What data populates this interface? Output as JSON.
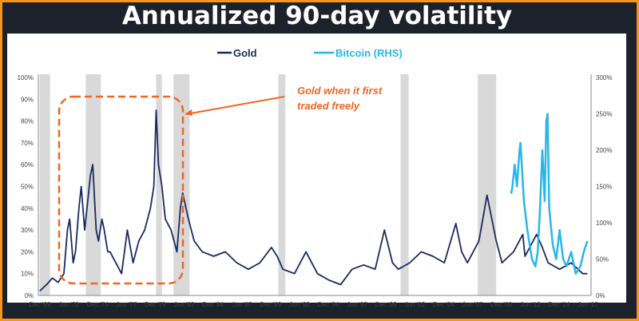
{
  "title": "Annualized 90-day volatility",
  "chart_data": {
    "type": "line",
    "legend": {
      "placement": "top-center"
    },
    "series": [
      {
        "name": "Gold",
        "axis": "left",
        "color": "#1a2a5e",
        "x": [
          1969.9,
          1970.5,
          1971,
          1971.5,
          1972,
          1972.3,
          1972.5,
          1972.8,
          1973,
          1973.3,
          1973.5,
          1973.8,
          1974,
          1974.3,
          1974.5,
          1974.8,
          1975,
          1975.3,
          1975.5,
          1975.8,
          1976,
          1976.5,
          1977,
          1977.5,
          1978,
          1978.5,
          1979,
          1979.5,
          1979.8,
          1980.0,
          1980.2,
          1980.5,
          1980.8,
          1981.3,
          1981.8,
          1982.1,
          1982.3,
          1982.8,
          1983.3,
          1984,
          1985,
          1986,
          1987,
          1988,
          1989,
          1990,
          1990.5,
          1991,
          1992,
          1993,
          1993.5,
          1994,
          1995,
          1996,
          1997,
          1998,
          1999,
          1999.8,
          2000.5,
          2001,
          2002,
          2003,
          2004,
          2005,
          2006,
          2006.5,
          2007,
          2008,
          2008.7,
          2009.5,
          2010,
          2011,
          2011.8,
          2012,
          2013,
          2013.5,
          2014,
          2015,
          2016,
          2017,
          2017.4
        ],
        "values": [
          2,
          5,
          8,
          6,
          10,
          30,
          35,
          15,
          20,
          40,
          50,
          30,
          40,
          55,
          60,
          30,
          25,
          35,
          30,
          20,
          20,
          15,
          10,
          30,
          15,
          25,
          30,
          40,
          50,
          85,
          60,
          50,
          35,
          30,
          20,
          40,
          47,
          35,
          25,
          20,
          18,
          20,
          15,
          12,
          15,
          22,
          18,
          12,
          10,
          20,
          15,
          10,
          7,
          5,
          12,
          14,
          12,
          30,
          15,
          12,
          15,
          20,
          18,
          15,
          33,
          20,
          15,
          25,
          46,
          25,
          15,
          20,
          28,
          18,
          28,
          22,
          15,
          12,
          15,
          10,
          10
        ]
      },
      {
        "name": "Bitcoin (RHS)",
        "axis": "right",
        "color": "#29b6e8",
        "x": [
          2010.8,
          2010.9,
          2011.1,
          2011.3,
          2011.5,
          2011.6,
          2011.9,
          2012.2,
          2012.6,
          2012.9,
          2013.1,
          2013.3,
          2013.5,
          2013.7,
          2013.85,
          2013.95,
          2014.1,
          2014.4,
          2014.7,
          2015.0,
          2015.3,
          2015.6,
          2016.0,
          2016.4,
          2016.8,
          2017.1,
          2017.4
        ],
        "values": [
          140,
          150,
          180,
          150,
          195,
          210,
          130,
          90,
          50,
          40,
          60,
          120,
          200,
          130,
          240,
          250,
          120,
          70,
          50,
          90,
          50,
          40,
          60,
          30,
          40,
          60,
          75
        ]
      }
    ],
    "x_ticks": [
      "Dec '69",
      "Jun '72",
      "Dec '74",
      "Jun '77",
      "Dec '79",
      "Jun '82",
      "Dec '84",
      "Jun '87",
      "Dec '89",
      "Jun '92",
      "Dec '94",
      "Jun '97",
      "Dec '99",
      "Jun '02",
      "Dec '04",
      "Jun '07",
      "Dec '09",
      "Jun '12",
      "Dec '14",
      "Jun '17"
    ],
    "xlim": [
      1969.92,
      2017.45
    ],
    "y_left": {
      "ylim": [
        0,
        100
      ],
      "ticks": [
        "0%",
        "10%",
        "20%",
        "30%",
        "40%",
        "50%",
        "60%",
        "70%",
        "80%",
        "90%",
        "100%"
      ]
    },
    "y_right": {
      "ylim": [
        0,
        300
      ],
      "ticks": [
        "0%",
        "50%",
        "100%",
        "150%",
        "200%",
        "250%",
        "300%"
      ]
    },
    "shaded_periods": [
      [
        1969.9,
        1970.8
      ],
      [
        1973.9,
        1975.2
      ],
      [
        1980.0,
        1980.5
      ],
      [
        1981.5,
        1982.9
      ],
      [
        1990.6,
        1991.2
      ],
      [
        2001.2,
        2001.9
      ],
      [
        2007.9,
        2009.5
      ]
    ],
    "shade_color": "#d9d9d9",
    "annotation": {
      "text_line1": "Gold when it first",
      "text_line2": "traded freely",
      "color": "#f26522",
      "period": [
        1972.0,
        1982.6
      ]
    },
    "grid": false
  }
}
